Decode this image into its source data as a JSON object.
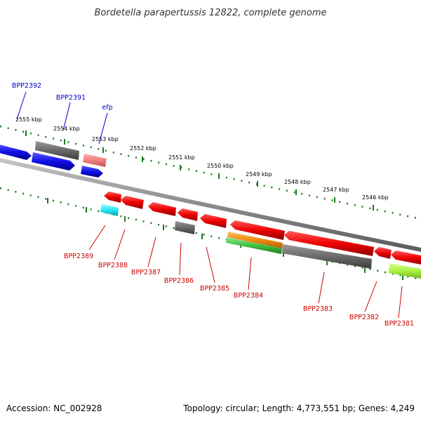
{
  "title": "Bordetella parapertussis 12822, complete genome",
  "footer": {
    "accession": "Accession: NC_002928",
    "summary": "Topology: circular; Length: 4,773,551 bp; Genes: 4,249"
  },
  "kbp_labels": [
    "2555 kbp",
    "2554 kbp",
    "2553 kbp",
    "2552 kbp",
    "2551 kbp",
    "2550 kbp",
    "2549 kbp",
    "2548 kbp",
    "2547 kbp",
    "2546 kbp"
  ],
  "genes_forward": [
    "BPP2392",
    "BPP2391",
    "efp"
  ],
  "genes_reverse": [
    "BPP2389",
    "BPP2388",
    "BPP2387",
    "BPP2386",
    "BPP2385",
    "BPP2384",
    "BPP2383",
    "BPP2382",
    "BPP2381"
  ],
  "colors": {
    "blue": "#1010e8",
    "gray": "#6a6a6a",
    "pink": "#f08080",
    "red": "#ee0000",
    "cyan": "#20e8f0",
    "orange": "#f08c10",
    "green": "#40c040",
    "lime": "#a8f040",
    "backbone": "#8a8a8a",
    "ticks": "#1a7a1a"
  }
}
